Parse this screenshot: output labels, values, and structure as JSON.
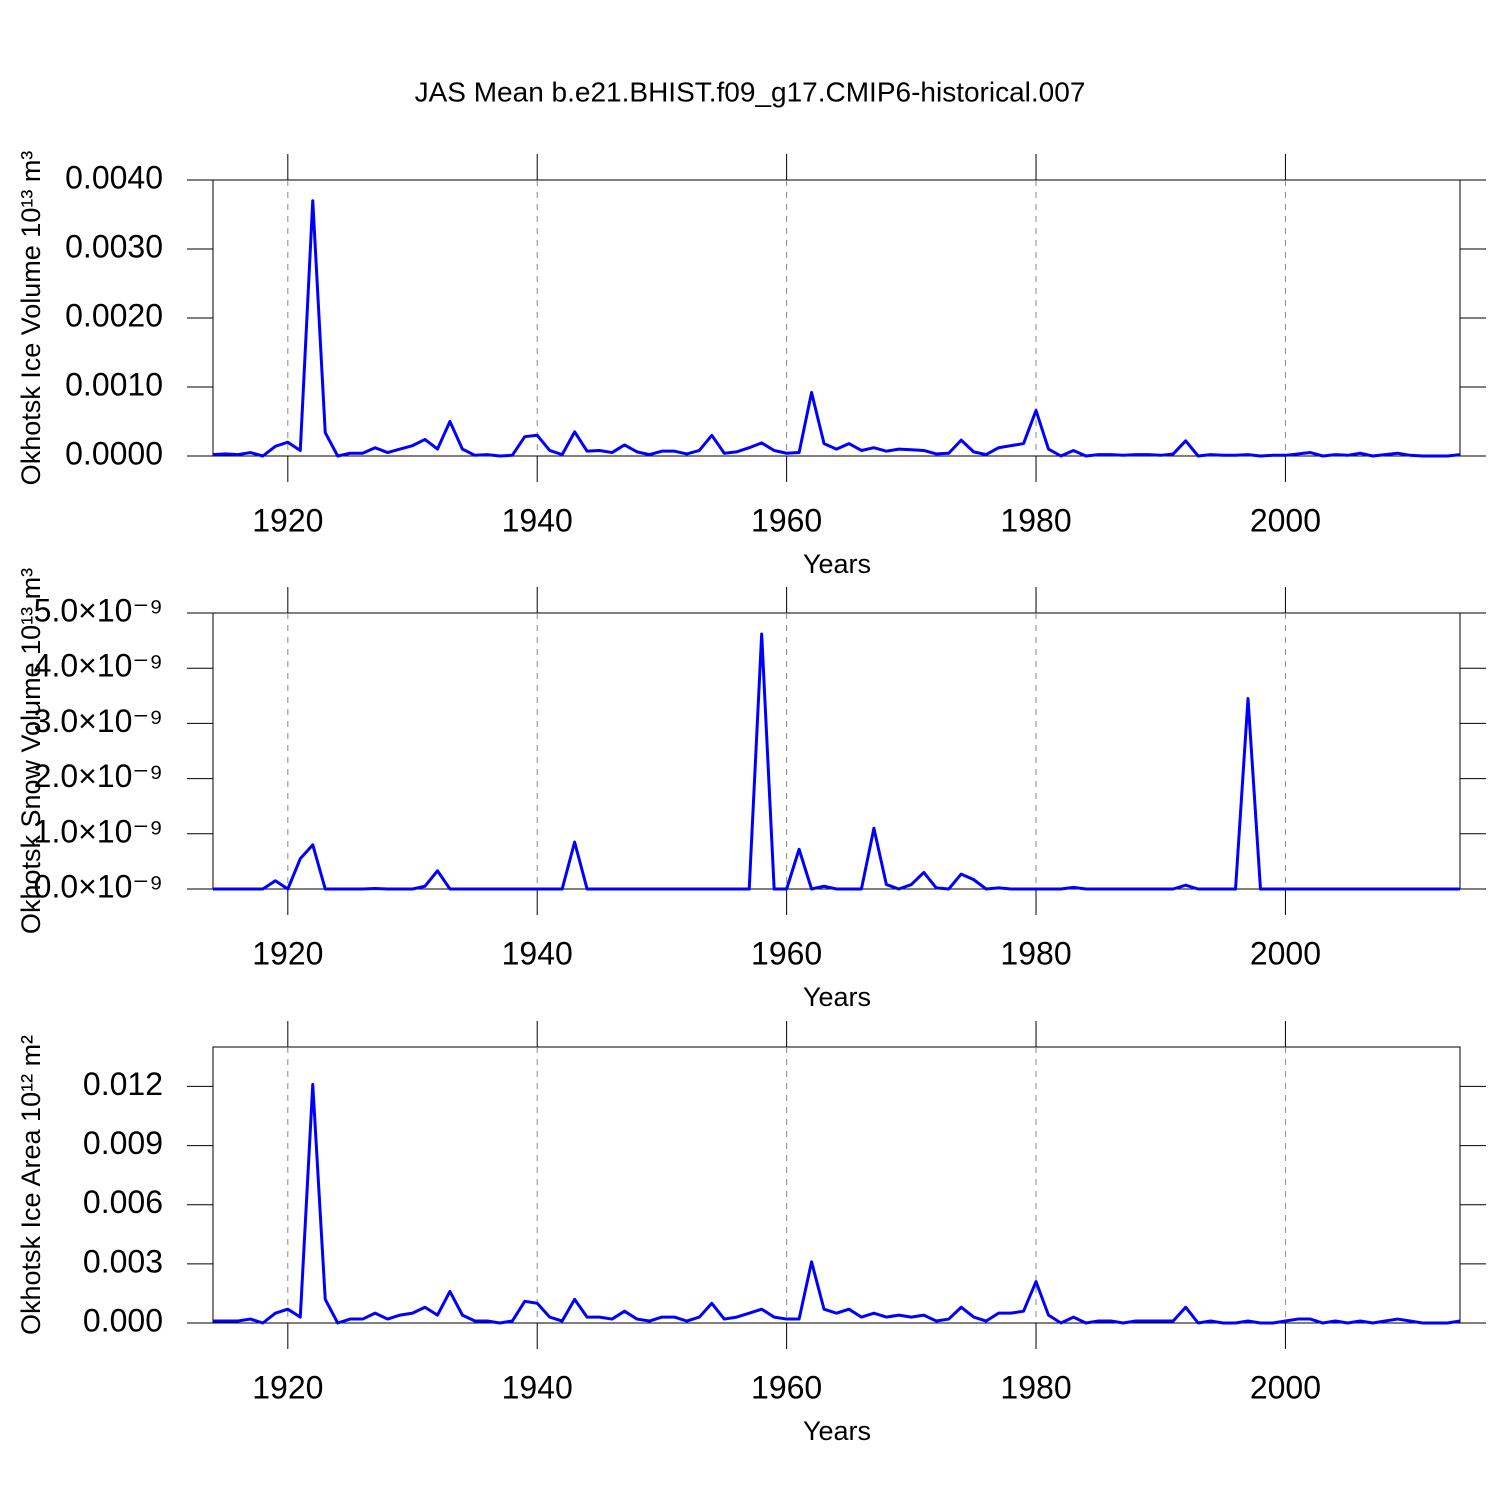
{
  "chart_data": [
    {
      "type": "line",
      "title": "JAS Mean b.e21.BHIST.f09_g17.CMIP6-historical.007",
      "x_label": "Years",
      "y_label": "Okhotsk Ice Volume 10¹³ m³",
      "color": "#0000ff",
      "grid": true,
      "x": [
        1914,
        1915,
        1916,
        1917,
        1918,
        1919,
        1920,
        1921,
        1922,
        1923,
        1924,
        1925,
        1926,
        1927,
        1928,
        1929,
        1930,
        1931,
        1932,
        1933,
        1934,
        1935,
        1936,
        1937,
        1938,
        1939,
        1940,
        1941,
        1942,
        1943,
        1944,
        1945,
        1946,
        1947,
        1948,
        1949,
        1950,
        1951,
        1952,
        1953,
        1954,
        1955,
        1956,
        1957,
        1958,
        1959,
        1960,
        1961,
        1962,
        1963,
        1964,
        1965,
        1966,
        1967,
        1968,
        1969,
        1970,
        1971,
        1972,
        1973,
        1974,
        1975,
        1976,
        1977,
        1978,
        1979,
        1980,
        1981,
        1982,
        1983,
        1984,
        1985,
        1986,
        1987,
        1988,
        1989,
        1990,
        1991,
        1992,
        1993,
        1994,
        1995,
        1996,
        1997,
        1998,
        1999,
        2000,
        2001,
        2002,
        2003,
        2004,
        2005,
        2006,
        2007,
        2008,
        2009,
        2010,
        2011,
        2012,
        2013,
        2014
      ],
      "values": [
        2e-05,
        3e-05,
        2e-05,
        5e-05,
        0,
        0.00014,
        0.0002,
        8e-05,
        0.0037,
        0.00034,
        0,
        4e-05,
        4e-05,
        0.00012,
        5e-05,
        0.0001,
        0.00015,
        0.00024,
        0.0001,
        0.0005,
        0.0001,
        1e-05,
        2e-05,
        0,
        1e-05,
        0.00028,
        0.0003,
        8e-05,
        2e-05,
        0.00035,
        7e-05,
        8e-05,
        5e-05,
        0.00016,
        6e-05,
        2e-05,
        7e-05,
        7e-05,
        3e-05,
        8e-05,
        0.0003,
        4e-05,
        6e-05,
        0.00012,
        0.00019,
        8e-05,
        4e-05,
        5e-05,
        0.00092,
        0.00018,
        0.0001,
        0.00018,
        8e-05,
        0.00012,
        7e-05,
        0.0001,
        9e-05,
        8e-05,
        3e-05,
        4e-05,
        0.00023,
        6e-05,
        2e-05,
        0.00012,
        0.00015,
        0.00018,
        0.00066,
        0.0001,
        0,
        8e-05,
        0,
        2e-05,
        2e-05,
        1e-05,
        2e-05,
        2e-05,
        1e-05,
        3e-05,
        0.00022,
        0,
        2e-05,
        1e-05,
        1e-05,
        2e-05,
        0,
        1e-05,
        1e-05,
        3e-05,
        5e-05,
        0,
        2e-05,
        1e-05,
        4e-05,
        0,
        2e-05,
        4e-05,
        1e-05,
        0,
        0,
        0,
        2e-05
      ],
      "xlim": [
        1914,
        2014
      ],
      "xticks": [
        1920,
        1940,
        1960,
        1980,
        2000
      ],
      "ylim": [
        0,
        0.004
      ],
      "yticks": [
        {
          "value": 0,
          "label": "0.0000"
        },
        {
          "value": 0.001,
          "label": "0.0010"
        },
        {
          "value": 0.002,
          "label": "0.0020"
        },
        {
          "value": 0.003,
          "label": "0.0030"
        },
        {
          "value": 0.004,
          "label": "0.0040"
        }
      ]
    },
    {
      "type": "line",
      "x_label": "Years",
      "y_label": "Okhotsk Snow Volume 10¹³ m³",
      "color": "#0000ff",
      "grid": true,
      "x": [
        1914,
        1915,
        1916,
        1917,
        1918,
        1919,
        1920,
        1921,
        1922,
        1923,
        1924,
        1925,
        1926,
        1927,
        1928,
        1929,
        1930,
        1931,
        1932,
        1933,
        1934,
        1935,
        1936,
        1937,
        1938,
        1939,
        1940,
        1941,
        1942,
        1943,
        1944,
        1945,
        1946,
        1947,
        1948,
        1949,
        1950,
        1951,
        1952,
        1953,
        1954,
        1955,
        1956,
        1957,
        1958,
        1959,
        1960,
        1961,
        1962,
        1963,
        1964,
        1965,
        1966,
        1967,
        1968,
        1969,
        1970,
        1971,
        1972,
        1973,
        1974,
        1975,
        1976,
        1977,
        1978,
        1979,
        1980,
        1981,
        1982,
        1983,
        1984,
        1985,
        1986,
        1987,
        1988,
        1989,
        1990,
        1991,
        1992,
        1993,
        1994,
        1995,
        1996,
        1997,
        1998,
        1999,
        2000,
        2001,
        2002,
        2003,
        2004,
        2005,
        2006,
        2007,
        2008,
        2009,
        2010,
        2011,
        2012,
        2013,
        2014
      ],
      "values": [
        0,
        0,
        0,
        0,
        0,
        1.5e-10,
        0,
        5.5e-10,
        8e-10,
        0,
        0,
        0,
        0,
        1e-11,
        0,
        0,
        0,
        5e-11,
        3.3e-10,
        0,
        0,
        0,
        0,
        0,
        0,
        0,
        0,
        0,
        0,
        8.5e-10,
        0,
        0,
        0,
        0,
        0,
        0,
        0,
        0,
        0,
        0,
        0,
        0,
        0,
        0,
        4.62e-09,
        0,
        0,
        7.2e-10,
        0,
        5e-11,
        0,
        0,
        0,
        1.1e-09,
        8e-11,
        0,
        8e-11,
        3e-10,
        2e-11,
        0,
        2.7e-10,
        1.7e-10,
        0,
        2e-11,
        0,
        0,
        0,
        0,
        0,
        3e-11,
        0,
        0,
        0,
        0,
        0,
        0,
        0,
        0,
        7e-11,
        0,
        0,
        0,
        0,
        3.45e-09,
        0,
        0,
        0,
        0,
        0,
        0,
        0,
        0,
        0,
        0,
        0,
        0,
        0,
        0,
        0,
        0,
        0
      ],
      "xlim": [
        1914,
        2014
      ],
      "xticks": [
        1920,
        1940,
        1960,
        1980,
        2000
      ],
      "ylim": [
        0,
        5e-09
      ],
      "yticks": [
        {
          "value": 0,
          "label": "0.0×10⁻⁹"
        },
        {
          "value": 1e-09,
          "label": "1.0×10⁻⁹"
        },
        {
          "value": 2e-09,
          "label": "2.0×10⁻⁹"
        },
        {
          "value": 3e-09,
          "label": "3.0×10⁻⁹"
        },
        {
          "value": 4e-09,
          "label": "4.0×10⁻⁹"
        },
        {
          "value": 5e-09,
          "label": "5.0×10⁻⁹"
        }
      ]
    },
    {
      "type": "line",
      "x_label": "Years",
      "y_label": "Okhotsk Ice Area 10¹² m²",
      "color": "#0000ff",
      "grid": true,
      "x": [
        1914,
        1915,
        1916,
        1917,
        1918,
        1919,
        1920,
        1921,
        1922,
        1923,
        1924,
        1925,
        1926,
        1927,
        1928,
        1929,
        1930,
        1931,
        1932,
        1933,
        1934,
        1935,
        1936,
        1937,
        1938,
        1939,
        1940,
        1941,
        1942,
        1943,
        1944,
        1945,
        1946,
        1947,
        1948,
        1949,
        1950,
        1951,
        1952,
        1953,
        1954,
        1955,
        1956,
        1957,
        1958,
        1959,
        1960,
        1961,
        1962,
        1963,
        1964,
        1965,
        1966,
        1967,
        1968,
        1969,
        1970,
        1971,
        1972,
        1973,
        1974,
        1975,
        1976,
        1977,
        1978,
        1979,
        1980,
        1981,
        1982,
        1983,
        1984,
        1985,
        1986,
        1987,
        1988,
        1989,
        1990,
        1991,
        1992,
        1993,
        1994,
        1995,
        1996,
        1997,
        1998,
        1999,
        2000,
        2001,
        2002,
        2003,
        2004,
        2005,
        2006,
        2007,
        2008,
        2009,
        2010,
        2011,
        2012,
        2013,
        2014
      ],
      "values": [
        0.0001,
        0.0001,
        0.0001,
        0.0002,
        0,
        0.0005,
        0.0007,
        0.0003,
        0.0121,
        0.0012,
        0,
        0.0002,
        0.0002,
        0.0005,
        0.0002,
        0.0004,
        0.0005,
        0.0008,
        0.0004,
        0.0016,
        0.0004,
        0.0001,
        0.0001,
        0,
        0.0001,
        0.0011,
        0.001,
        0.0003,
        0.0001,
        0.0012,
        0.0003,
        0.0003,
        0.0002,
        0.0006,
        0.0002,
        0.0001,
        0.0003,
        0.0003,
        0.0001,
        0.0003,
        0.001,
        0.0002,
        0.0003,
        0.0005,
        0.0007,
        0.0003,
        0.0002,
        0.0002,
        0.0031,
        0.0007,
        0.0005,
        0.0007,
        0.0003,
        0.0005,
        0.0003,
        0.0004,
        0.0003,
        0.0004,
        0.0001,
        0.0002,
        0.0008,
        0.0003,
        0.0001,
        0.0005,
        0.0005,
        0.0006,
        0.0021,
        0.0004,
        0,
        0.0003,
        0,
        0.0001,
        0.0001,
        0,
        0.0001,
        0.0001,
        0.0001,
        0.0001,
        0.0008,
        0,
        0.0001,
        0,
        0,
        0.0001,
        0,
        0,
        0.0001,
        0.0002,
        0.0002,
        0,
        0.0001,
        0,
        0.0001,
        0,
        0.0001,
        0.0002,
        0.0001,
        0,
        0,
        0,
        0.0001
      ],
      "xlim": [
        1914,
        2014
      ],
      "xticks": [
        1920,
        1940,
        1960,
        1980,
        2000
      ],
      "ylim": [
        0,
        0.014
      ],
      "yticks": [
        {
          "value": 0,
          "label": "0.000"
        },
        {
          "value": 0.003,
          "label": "0.003"
        },
        {
          "value": 0.006,
          "label": "0.006"
        },
        {
          "value": 0.009,
          "label": "0.009"
        },
        {
          "value": 0.012,
          "label": "0.012"
        }
      ]
    }
  ]
}
